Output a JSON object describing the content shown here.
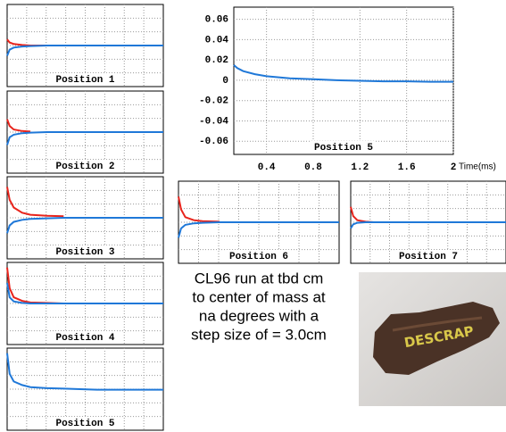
{
  "chart_data": [
    {
      "type": "line",
      "title": "Position 1",
      "x": [
        0.12,
        0.15,
        0.2,
        0.3,
        0.4,
        0.6,
        0.8,
        1.0,
        1.2,
        1.4,
        1.6,
        1.8,
        2.0
      ],
      "xlim": [
        0.12,
        2
      ],
      "ylim": [
        -0.08,
        0.08
      ],
      "grid": true,
      "series": [
        {
          "color": "#e8241c",
          "values": [
            0.012,
            0.006,
            0.003,
            0.001,
            0,
            0,
            0,
            0,
            0,
            0,
            0,
            0,
            0
          ]
        },
        {
          "color": "#1f78d8",
          "values": [
            -0.02,
            -0.008,
            -0.004,
            -0.002,
            -0.001,
            0,
            0,
            0,
            0,
            0,
            0,
            0,
            0
          ]
        }
      ]
    },
    {
      "type": "line",
      "title": "Position 2",
      "x": [
        0.12,
        0.15,
        0.2,
        0.3,
        0.4,
        0.6,
        0.8,
        1.0,
        1.2,
        1.4,
        1.6,
        1.8,
        2.0
      ],
      "xlim": [
        0.12,
        2
      ],
      "ylim": [
        -0.08,
        0.08
      ],
      "grid": true,
      "series": [
        {
          "color": "#e8241c",
          "values": [
            0.025,
            0.012,
            0.005,
            0.002,
            0.001,
            null,
            null,
            null,
            null,
            null,
            null,
            null,
            null
          ]
        },
        {
          "color": "#1f78d8",
          "values": [
            -0.025,
            -0.01,
            -0.005,
            -0.002,
            -0.001,
            0,
            0,
            0,
            0,
            0,
            0,
            0,
            0
          ]
        }
      ]
    },
    {
      "type": "line",
      "title": "Position 3",
      "x": [
        0.12,
        0.15,
        0.2,
        0.3,
        0.4,
        0.6,
        0.8,
        1.0,
        1.2,
        1.4,
        1.6,
        1.8,
        2.0
      ],
      "xlim": [
        0.12,
        2
      ],
      "ylim": [
        -0.08,
        0.08
      ],
      "grid": true,
      "series": [
        {
          "color": "#e8241c",
          "values": [
            0.06,
            0.035,
            0.02,
            0.01,
            0.006,
            0.004,
            0.003,
            null,
            null,
            null,
            null,
            null,
            null
          ]
        },
        {
          "color": "#1f78d8",
          "values": [
            -0.03,
            -0.015,
            -0.008,
            -0.004,
            -0.002,
            -0.001,
            0,
            0,
            0,
            0,
            0,
            0,
            0
          ]
        }
      ]
    },
    {
      "type": "line",
      "title": "Position 4",
      "x": [
        0.12,
        0.15,
        0.2,
        0.3,
        0.4,
        0.6,
        0.8,
        1.0,
        1.2,
        1.4,
        1.6,
        1.8,
        2.0
      ],
      "xlim": [
        0.12,
        2
      ],
      "ylim": [
        -0.08,
        0.08
      ],
      "grid": true,
      "series": [
        {
          "color": "#e8241c",
          "values": [
            0.07,
            0.03,
            0.012,
            0.005,
            0.002,
            0.001,
            0,
            null,
            null,
            null,
            null,
            null,
            null
          ]
        },
        {
          "color": "#1f78d8",
          "values": [
            0.04,
            0.012,
            0.004,
            0.001,
            0,
            0,
            0,
            0,
            0,
            0,
            0,
            0,
            0
          ]
        }
      ]
    },
    {
      "type": "line",
      "title": "Position 5",
      "x": [
        0.12,
        0.15,
        0.2,
        0.3,
        0.4,
        0.6,
        0.8,
        1.0,
        1.2,
        1.4,
        1.6,
        1.8,
        2.0
      ],
      "xlim": [
        0.12,
        2
      ],
      "ylim": [
        -0.08,
        0.08
      ],
      "grid": true,
      "series": [
        {
          "color": "#1f78d8",
          "values": [
            0.07,
            0.03,
            0.015,
            0.008,
            0.004,
            0.002,
            0.001,
            0,
            -0.001,
            -0.001,
            -0.001,
            -0.001,
            -0.001
          ]
        }
      ]
    },
    {
      "type": "line",
      "title": "Position 5",
      "xlabel": "Time(ms)",
      "x": [
        0.12,
        0.15,
        0.2,
        0.3,
        0.4,
        0.6,
        0.8,
        1.0,
        1.2,
        1.4,
        1.6,
        1.8,
        2.0
      ],
      "xlim": [
        0.12,
        2
      ],
      "ylim": [
        -0.073,
        0.072
      ],
      "xticks": [
        0.4,
        0.8,
        1.2,
        1.6,
        2
      ],
      "yticks": [
        0.06,
        0.04,
        0.02,
        0,
        -0.02,
        -0.04,
        -0.06
      ],
      "grid": true,
      "series": [
        {
          "color": "#1f78d8",
          "values": [
            0.015,
            0.012,
            0.009,
            0.006,
            0.004,
            0.002,
            0.001,
            0,
            -0.0005,
            -0.001,
            -0.001,
            -0.0015,
            -0.0015
          ]
        }
      ]
    },
    {
      "type": "line",
      "title": "Position 6",
      "x": [
        0.12,
        0.15,
        0.2,
        0.3,
        0.4,
        0.6,
        0.8,
        1.0,
        1.2,
        1.4,
        1.6,
        1.8,
        2.0
      ],
      "xlim": [
        0.12,
        2
      ],
      "ylim": [
        -0.08,
        0.08
      ],
      "grid": true,
      "series": [
        {
          "color": "#e8241c",
          "values": [
            0.05,
            0.025,
            0.01,
            0.004,
            0.002,
            0.001,
            null,
            null,
            null,
            null,
            null,
            null,
            null
          ]
        },
        {
          "color": "#1f78d8",
          "values": [
            -0.03,
            -0.012,
            -0.005,
            -0.002,
            -0.001,
            0,
            0,
            0,
            0,
            0,
            0,
            0,
            0
          ]
        }
      ]
    },
    {
      "type": "line",
      "title": "Position 7",
      "x": [
        0.12,
        0.15,
        0.2,
        0.3,
        0.4,
        0.6,
        0.8,
        1.0,
        1.2,
        1.4,
        1.6,
        1.8,
        2.0
      ],
      "xlim": [
        0.12,
        2
      ],
      "ylim": [
        -0.08,
        0.08
      ],
      "grid": true,
      "series": [
        {
          "color": "#e8241c",
          "values": [
            0.03,
            0.012,
            0.004,
            0.001,
            0,
            null,
            null,
            null,
            null,
            null,
            null,
            null,
            null
          ]
        },
        {
          "color": "#1f78d8",
          "values": [
            -0.012,
            -0.004,
            -0.001,
            0,
            0,
            0,
            0,
            0,
            0,
            0,
            0,
            0,
            0
          ]
        }
      ]
    }
  ],
  "caption": {
    "lines": [
      "CL96 run at tbd cm",
      "to center of mass at",
      "na degrees with a",
      "step size of = 3.0cm"
    ]
  },
  "photo": {
    "label": "DESCRAP"
  }
}
